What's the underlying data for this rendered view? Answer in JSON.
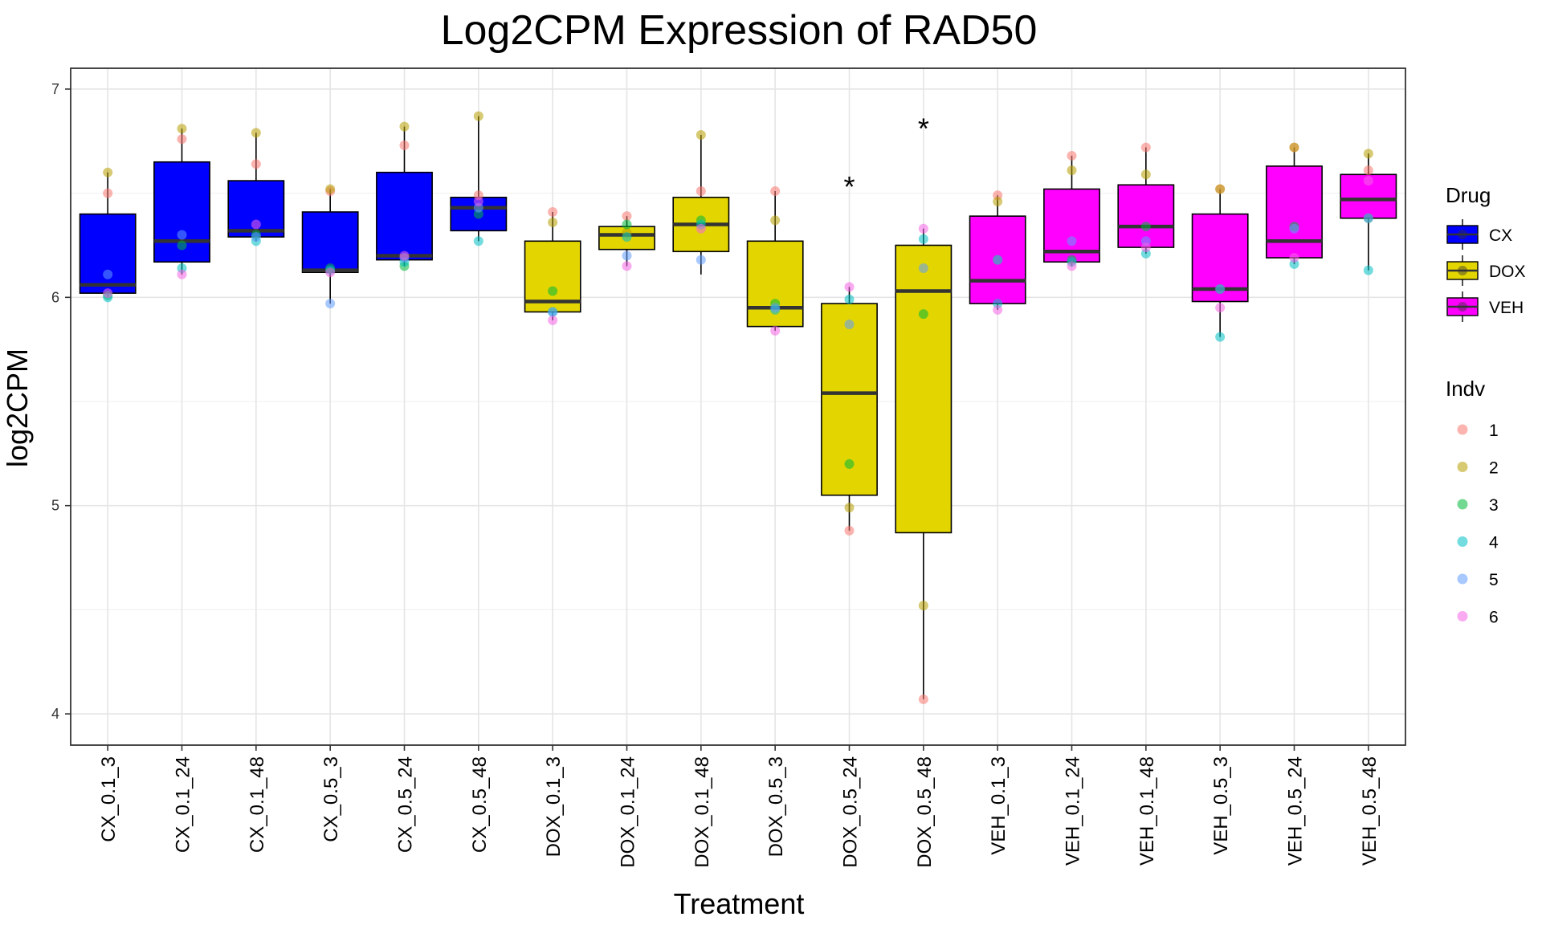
{
  "chart_data": {
    "type": "boxplot",
    "title": "Log2CPM Expression of RAD50",
    "xlabel": "Treatment",
    "ylabel": "log2CPM",
    "ylim": [
      3.85,
      7.1
    ],
    "yticks": [
      4,
      5,
      6,
      7
    ],
    "grid": true,
    "colors": {
      "CX": "#0000ff",
      "DOX": "#e3d600",
      "VEH": "#ff00ff",
      "indv": {
        "1": "#f8766d",
        "2": "#b79f00",
        "3": "#00ba38",
        "4": "#00bfc4",
        "5": "#619cff",
        "6": "#f564e3"
      }
    },
    "categories": [
      "CX_0.1_3",
      "CX_0.1_24",
      "CX_0.1_48",
      "CX_0.5_3",
      "CX_0.5_24",
      "CX_0.5_48",
      "DOX_0.1_3",
      "DOX_0.1_24",
      "DOX_0.1_48",
      "DOX_0.5_3",
      "DOX_0.5_24",
      "DOX_0.5_48",
      "VEH_0.1_3",
      "VEH_0.1_24",
      "VEH_0.1_48",
      "VEH_0.5_3",
      "VEH_0.5_24",
      "VEH_0.5_48"
    ],
    "drug": [
      "CX",
      "CX",
      "CX",
      "CX",
      "CX",
      "CX",
      "DOX",
      "DOX",
      "DOX",
      "DOX",
      "DOX",
      "DOX",
      "VEH",
      "VEH",
      "VEH",
      "VEH",
      "VEH",
      "VEH"
    ],
    "boxes": [
      {
        "low": 6.0,
        "q1": 6.02,
        "median": 6.06,
        "q3": 6.4,
        "high": 6.6
      },
      {
        "low": 6.11,
        "q1": 6.17,
        "median": 6.27,
        "q3": 6.65,
        "high": 6.81
      },
      {
        "low": 6.27,
        "q1": 6.29,
        "median": 6.32,
        "q3": 6.56,
        "high": 6.79
      },
      {
        "low": 5.97,
        "q1": 6.12,
        "median": 6.13,
        "q3": 6.41,
        "high": 6.52
      },
      {
        "low": 6.15,
        "q1": 6.18,
        "median": 6.2,
        "q3": 6.6,
        "high": 6.82
      },
      {
        "low": 6.27,
        "q1": 6.32,
        "median": 6.43,
        "q3": 6.48,
        "high": 6.87
      },
      {
        "low": 5.89,
        "q1": 5.93,
        "median": 5.98,
        "q3": 6.27,
        "high": 6.41
      },
      {
        "low": 6.15,
        "q1": 6.23,
        "median": 6.3,
        "q3": 6.34,
        "high": 6.39
      },
      {
        "low": 6.11,
        "q1": 6.22,
        "median": 6.35,
        "q3": 6.48,
        "high": 6.78
      },
      {
        "low": 5.84,
        "q1": 5.86,
        "median": 5.95,
        "q3": 6.27,
        "high": 6.51
      },
      {
        "low": 4.88,
        "q1": 5.05,
        "median": 5.54,
        "q3": 5.97,
        "high": 6.05
      },
      {
        "low": 4.07,
        "q1": 4.87,
        "median": 6.03,
        "q3": 6.25,
        "high": 6.33
      },
      {
        "low": 5.94,
        "q1": 5.97,
        "median": 6.08,
        "q3": 6.39,
        "high": 6.49
      },
      {
        "low": 6.15,
        "q1": 6.17,
        "median": 6.22,
        "q3": 6.52,
        "high": 6.68
      },
      {
        "low": 6.21,
        "q1": 6.24,
        "median": 6.34,
        "q3": 6.54,
        "high": 6.72
      },
      {
        "low": 5.81,
        "q1": 5.98,
        "median": 6.04,
        "q3": 6.4,
        "high": 6.52
      },
      {
        "low": 6.16,
        "q1": 6.19,
        "median": 6.27,
        "q3": 6.63,
        "high": 6.72
      },
      {
        "low": 6.13,
        "q1": 6.38,
        "median": 6.47,
        "q3": 6.59,
        "high": 6.69
      }
    ],
    "points": [
      [
        {
          "indv": "1",
          "y": 6.5
        },
        {
          "indv": "2",
          "y": 6.6
        },
        {
          "indv": "3",
          "y": 6.01
        },
        {
          "indv": "4",
          "y": 6.0
        },
        {
          "indv": "5",
          "y": 6.11
        },
        {
          "indv": "6",
          "y": 6.02
        }
      ],
      [
        {
          "indv": "1",
          "y": 6.76
        },
        {
          "indv": "2",
          "y": 6.81
        },
        {
          "indv": "3",
          "y": 6.25
        },
        {
          "indv": "4",
          "y": 6.14
        },
        {
          "indv": "5",
          "y": 6.3
        },
        {
          "indv": "6",
          "y": 6.11
        }
      ],
      [
        {
          "indv": "1",
          "y": 6.64
        },
        {
          "indv": "2",
          "y": 6.79
        },
        {
          "indv": "3",
          "y": 6.3
        },
        {
          "indv": "4",
          "y": 6.27
        },
        {
          "indv": "5",
          "y": 6.29
        },
        {
          "indv": "6",
          "y": 6.35
        }
      ],
      [
        {
          "indv": "1",
          "y": 6.51
        },
        {
          "indv": "2",
          "y": 6.52
        },
        {
          "indv": "3",
          "y": 6.14
        },
        {
          "indv": "4",
          "y": 6.13
        },
        {
          "indv": "5",
          "y": 5.97
        },
        {
          "indv": "6",
          "y": 6.12
        }
      ],
      [
        {
          "indv": "1",
          "y": 6.73
        },
        {
          "indv": "2",
          "y": 6.82
        },
        {
          "indv": "3",
          "y": 6.15
        },
        {
          "indv": "4",
          "y": 6.17
        },
        {
          "indv": "5",
          "y": 6.19
        },
        {
          "indv": "6",
          "y": 6.2
        }
      ],
      [
        {
          "indv": "1",
          "y": 6.49
        },
        {
          "indv": "2",
          "y": 6.87
        },
        {
          "indv": "3",
          "y": 6.4
        },
        {
          "indv": "4",
          "y": 6.27
        },
        {
          "indv": "5",
          "y": 6.43
        },
        {
          "indv": "6",
          "y": 6.46
        }
      ],
      [
        {
          "indv": "1",
          "y": 6.41
        },
        {
          "indv": "2",
          "y": 6.36
        },
        {
          "indv": "3",
          "y": 6.03
        },
        {
          "indv": "4",
          "y": 5.93
        },
        {
          "indv": "5",
          "y": 5.93
        },
        {
          "indv": "6",
          "y": 5.89
        }
      ],
      [
        {
          "indv": "1",
          "y": 6.39
        },
        {
          "indv": "2",
          "y": 6.31
        },
        {
          "indv": "3",
          "y": 6.35
        },
        {
          "indv": "4",
          "y": 6.29
        },
        {
          "indv": "5",
          "y": 6.2
        },
        {
          "indv": "6",
          "y": 6.15
        }
      ],
      [
        {
          "indv": "1",
          "y": 6.51
        },
        {
          "indv": "2",
          "y": 6.78
        },
        {
          "indv": "3",
          "y": 6.37
        },
        {
          "indv": "4",
          "y": 6.35
        },
        {
          "indv": "5",
          "y": 6.18
        },
        {
          "indv": "6",
          "y": 6.33
        }
      ],
      [
        {
          "indv": "1",
          "y": 6.51
        },
        {
          "indv": "2",
          "y": 6.37
        },
        {
          "indv": "3",
          "y": 5.97
        },
        {
          "indv": "4",
          "y": 5.94
        },
        {
          "indv": "5",
          "y": 5.95
        },
        {
          "indv": "6",
          "y": 5.84
        }
      ],
      [
        {
          "indv": "1",
          "y": 4.88
        },
        {
          "indv": "2",
          "y": 4.99
        },
        {
          "indv": "3",
          "y": 5.2
        },
        {
          "indv": "4",
          "y": 5.99
        },
        {
          "indv": "5",
          "y": 5.87
        },
        {
          "indv": "6",
          "y": 6.05
        }
      ],
      [
        {
          "indv": "1",
          "y": 4.07
        },
        {
          "indv": "2",
          "y": 4.52
        },
        {
          "indv": "3",
          "y": 5.92
        },
        {
          "indv": "4",
          "y": 6.28
        },
        {
          "indv": "5",
          "y": 6.14
        },
        {
          "indv": "6",
          "y": 6.33
        }
      ],
      [
        {
          "indv": "1",
          "y": 6.49
        },
        {
          "indv": "2",
          "y": 6.46
        },
        {
          "indv": "3",
          "y": 6.18
        },
        {
          "indv": "4",
          "y": 5.97
        },
        {
          "indv": "5",
          "y": 6.18
        },
        {
          "indv": "6",
          "y": 5.94
        }
      ],
      [
        {
          "indv": "1",
          "y": 6.68
        },
        {
          "indv": "2",
          "y": 6.61
        },
        {
          "indv": "3",
          "y": 6.18
        },
        {
          "indv": "4",
          "y": 6.17
        },
        {
          "indv": "5",
          "y": 6.27
        },
        {
          "indv": "6",
          "y": 6.15
        }
      ],
      [
        {
          "indv": "1",
          "y": 6.72
        },
        {
          "indv": "2",
          "y": 6.59
        },
        {
          "indv": "3",
          "y": 6.34
        },
        {
          "indv": "4",
          "y": 6.21
        },
        {
          "indv": "5",
          "y": 6.27
        },
        {
          "indv": "6",
          "y": 6.24
        }
      ],
      [
        {
          "indv": "1",
          "y": 6.52
        },
        {
          "indv": "2",
          "y": 6.52
        },
        {
          "indv": "3",
          "y": 6.04
        },
        {
          "indv": "4",
          "y": 5.81
        },
        {
          "indv": "5",
          "y": 6.04
        },
        {
          "indv": "6",
          "y": 5.95
        }
      ],
      [
        {
          "indv": "1",
          "y": 6.72
        },
        {
          "indv": "2",
          "y": 6.72
        },
        {
          "indv": "3",
          "y": 6.34
        },
        {
          "indv": "4",
          "y": 6.16
        },
        {
          "indv": "5",
          "y": 6.33
        },
        {
          "indv": "6",
          "y": 6.19
        }
      ],
      [
        {
          "indv": "1",
          "y": 6.61
        },
        {
          "indv": "2",
          "y": 6.69
        },
        {
          "indv": "3",
          "y": 6.38
        },
        {
          "indv": "4",
          "y": 6.13
        },
        {
          "indv": "5",
          "y": 6.38
        },
        {
          "indv": "6",
          "y": 6.56
        }
      ]
    ],
    "annotations": [
      {
        "category": "DOX_0.5_24",
        "text": "*",
        "y": 6.56
      },
      {
        "category": "DOX_0.5_48",
        "text": "*",
        "y": 6.84
      }
    ],
    "legend": {
      "placement": "right",
      "drug": {
        "title": "Drug",
        "items": [
          "CX",
          "DOX",
          "VEH"
        ]
      },
      "indv": {
        "title": "Indv",
        "items": [
          "1",
          "2",
          "3",
          "4",
          "5",
          "6"
        ]
      }
    }
  }
}
